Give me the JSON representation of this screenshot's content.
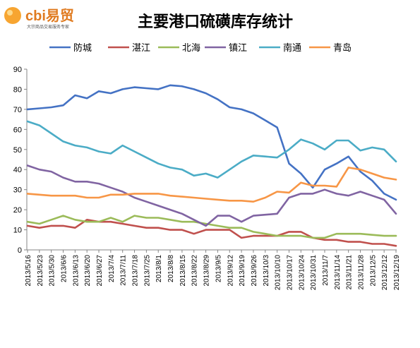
{
  "logo": {
    "brand": "cbi易贸",
    "tagline": "大宗商品交易服务专家"
  },
  "colors": {
    "防城": "#4472C4",
    "湛江": "#C0504D",
    "北海": "#9BBB59",
    "镇江": "#8064A2",
    "南通": "#4BACC6",
    "青岛": "#F79646"
  },
  "chart_data": {
    "type": "line",
    "title": "主要港口硫磺库存统计",
    "xlabel": "",
    "ylabel": "",
    "ylim": [
      0,
      90
    ],
    "yticks": [
      0,
      10,
      20,
      30,
      40,
      50,
      60,
      70,
      80,
      90
    ],
    "grid": false,
    "legend": "top",
    "x": [
      "2013/5/16",
      "2013/5/23",
      "2013/5/30",
      "2013/6/6",
      "2013/6/13",
      "2013/6/20",
      "2013/6/27",
      "2013/7/4",
      "2013/7/11",
      "2013/7/18",
      "2013/7/25",
      "2013/8/1",
      "2013/8/8",
      "2013/8/15",
      "2013/8/22",
      "2013/8/29",
      "2013/9/5",
      "2013/9/12",
      "2013/9/19",
      "2013/9/26",
      "2013/10/3",
      "2013/10/10",
      "2013/10/17",
      "2013/10/24",
      "2013/10/31",
      "2013/11/7",
      "2013/11/14",
      "2013/11/21",
      "2013/11/28",
      "2013/12/5",
      "2013/12/12",
      "2013/12/19"
    ],
    "series": [
      {
        "name": "防城",
        "values": [
          70,
          70.5,
          71,
          72,
          77,
          75.5,
          79,
          78,
          80,
          81,
          80.5,
          80,
          82,
          81.5,
          80,
          78,
          75,
          71,
          70,
          68,
          64.5,
          61,
          43,
          38,
          31,
          40,
          43,
          46.5,
          39,
          34.5,
          28,
          25
        ]
      },
      {
        "name": "湛江",
        "values": [
          12,
          11,
          12,
          12,
          11,
          15,
          14,
          14,
          13,
          12,
          11,
          11,
          10,
          10,
          8,
          10,
          10,
          10,
          6,
          7,
          7,
          7,
          9,
          9,
          6,
          5,
          5,
          4,
          4,
          3,
          3,
          2
        ]
      },
      {
        "name": "北海",
        "values": [
          14,
          13,
          15,
          17,
          15,
          14,
          14,
          16,
          14,
          17,
          16,
          16,
          15,
          14,
          14,
          13,
          12,
          11,
          11,
          9,
          8,
          7,
          7,
          7,
          6,
          6,
          8,
          8,
          8,
          7.5,
          7,
          7
        ]
      },
      {
        "name": "镇江",
        "values": [
          42,
          40,
          39,
          36,
          34,
          34,
          33,
          31,
          29,
          26,
          24,
          22,
          20,
          18,
          15,
          12,
          17,
          17,
          14,
          17,
          17.5,
          18,
          26,
          28,
          28,
          30,
          28,
          27,
          29,
          27,
          25,
          18
        ]
      },
      {
        "name": "南通",
        "values": [
          64,
          62,
          58,
          54,
          52,
          51,
          49,
          48,
          52,
          49,
          46,
          43,
          41,
          40,
          37,
          38,
          36,
          40,
          44,
          47,
          46.5,
          46,
          50,
          55,
          53,
          50,
          54.5,
          54.5,
          49.5,
          51,
          50,
          44
        ]
      },
      {
        "name": "青岛",
        "values": [
          28,
          27.5,
          27,
          27,
          27,
          26,
          26,
          27.5,
          27.5,
          28,
          28,
          28,
          27,
          26.5,
          26,
          25.5,
          25,
          24.5,
          24.5,
          24,
          26,
          29,
          28.5,
          33.5,
          32,
          32,
          31.5,
          41,
          40,
          38,
          36,
          35
        ]
      }
    ]
  }
}
